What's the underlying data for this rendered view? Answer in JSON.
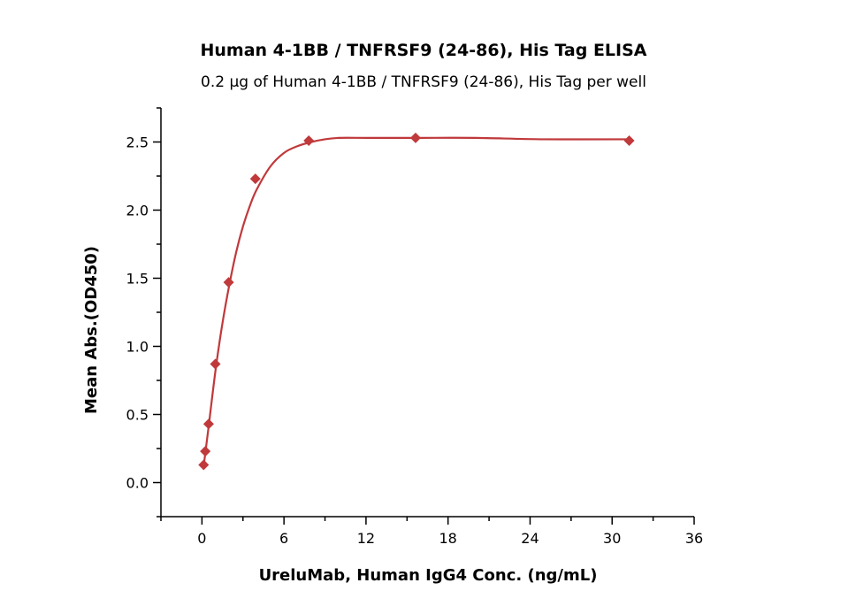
{
  "chart_data": {
    "type": "scatter",
    "title": "Human 4-1BB / TNFRSF9 (24-86), His Tag ELISA",
    "subtitle": "0.2 μg of Human 4-1BB / TNFRSF9 (24-86), His Tag per well",
    "xlabel": "UreluMab, Human IgG4 Conc. (ng/mL)",
    "ylabel": "Mean Abs.(OD450)",
    "xlim": [
      -3,
      36
    ],
    "ylim": [
      -0.25,
      2.75
    ],
    "xticks": [
      0,
      6,
      12,
      18,
      24,
      30,
      36
    ],
    "xtick_labels": [
      "0",
      "6",
      "12",
      "18",
      "24",
      "30",
      "36"
    ],
    "yticks": [
      0.0,
      0.5,
      1.0,
      1.5,
      2.0,
      2.5
    ],
    "ytick_labels": [
      "0.0",
      "0.5",
      "1.0",
      "1.5",
      "2.0",
      "2.5"
    ],
    "grid": false,
    "colors": {
      "series": "#c0393b",
      "axis": "#000000"
    },
    "series": [
      {
        "marker": "diamond",
        "x": [
          0.122,
          0.244,
          0.488,
          0.977,
          1.953,
          3.906,
          7.813,
          15.625,
          31.25
        ],
        "y": [
          0.13,
          0.23,
          0.43,
          0.87,
          1.47,
          2.23,
          2.51,
          2.53,
          2.51
        ],
        "fit_curve": {
          "x": [
            0.1,
            0.5,
            1,
            1.5,
            2,
            2.5,
            3,
            3.5,
            4,
            5,
            6,
            7,
            8,
            9,
            10,
            12,
            14,
            16,
            20,
            25,
            31.25
          ],
          "y": [
            0.1,
            0.42,
            0.83,
            1.17,
            1.45,
            1.69,
            1.88,
            2.03,
            2.15,
            2.32,
            2.42,
            2.47,
            2.5,
            2.52,
            2.53,
            2.53,
            2.53,
            2.53,
            2.53,
            2.52,
            2.52
          ]
        }
      }
    ]
  }
}
